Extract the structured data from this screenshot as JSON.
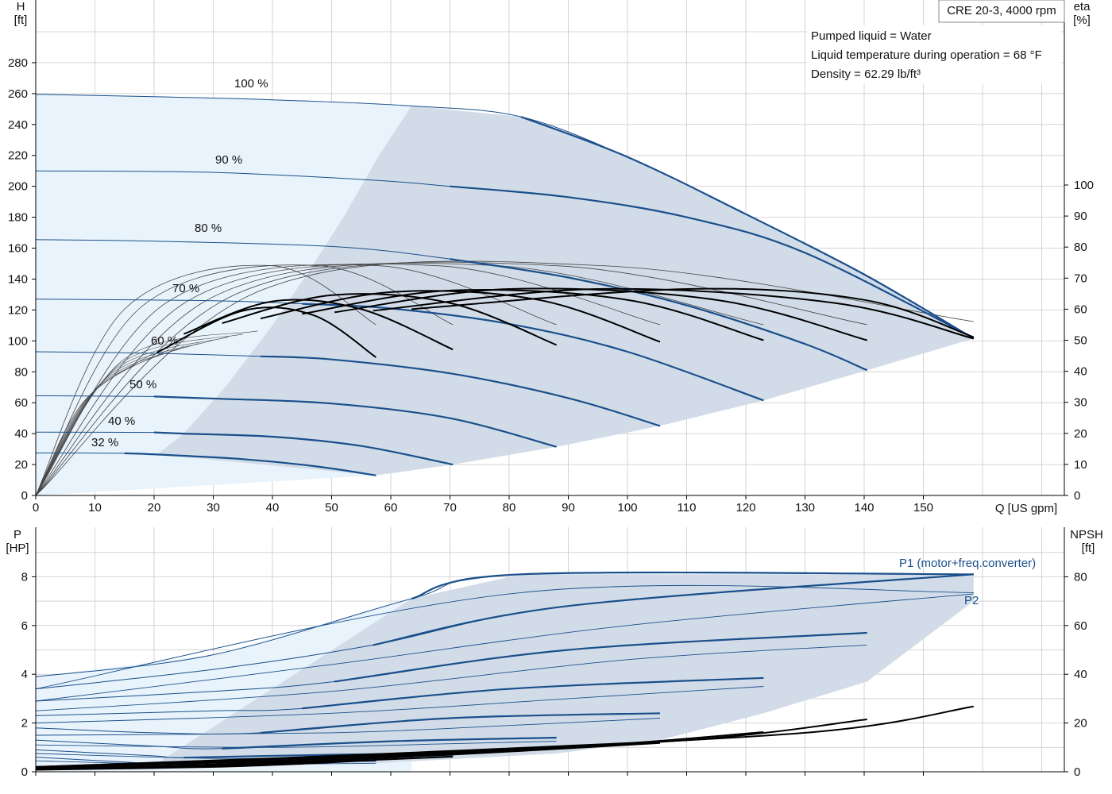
{
  "model_label": "CRE 20-3, 4000 rpm",
  "info_lines": [
    "Pumped liquid = Water",
    "Liquid temperature during operation = 68 °F",
    "Density = 62.29 lb/ft³"
  ],
  "colors": {
    "curve_blue": "#1a4f8b",
    "area_dark": "#d2dce8",
    "area_light": "#e9f3fb",
    "grid": "#d4d4d4",
    "eta_black": "#000000"
  },
  "chart_data": [
    {
      "type": "line",
      "name": "head",
      "xlabel": "Q [US gpm]",
      "ylabel": "H\n[ft]",
      "y2label": "eta\n[%]",
      "xlim": [
        0,
        170
      ],
      "ylim": [
        0,
        310
      ],
      "y2lim": [
        0,
        155
      ],
      "x_ticks": [
        0,
        10,
        20,
        30,
        40,
        50,
        60,
        70,
        80,
        90,
        100,
        110,
        120,
        130,
        140,
        150
      ],
      "y_ticks": [
        0,
        20,
        40,
        60,
        80,
        100,
        120,
        140,
        160,
        180,
        200,
        220,
        240,
        260,
        280
      ],
      "y2_ticks": [
        0,
        10,
        20,
        30,
        40,
        50,
        60,
        70,
        80,
        90,
        100
      ],
      "speed_curves": [
        {
          "label": "100 %",
          "x": [
            0,
            20,
            40,
            63.5,
            82,
            100,
            120,
            140,
            158.5
          ],
          "y": [
            259.5,
            258,
            256,
            252,
            245,
            219,
            182,
            143,
            101.5
          ]
        },
        {
          "label": "90 %",
          "x": [
            0,
            30,
            57,
            70,
            90,
            110,
            130,
            158.5
          ],
          "y": [
            210,
            209,
            204,
            200,
            193,
            180,
            157,
            102
          ]
        },
        {
          "label": "80 %",
          "x": [
            0,
            20,
            50.5,
            70,
            90,
            110,
            130,
            140.5
          ],
          "y": [
            165.5,
            164.5,
            161,
            153,
            141,
            123,
            98,
            81
          ]
        },
        {
          "label": "70 %",
          "x": [
            0,
            30,
            45,
            60,
            80,
            100,
            123
          ],
          "y": [
            127,
            126,
            124,
            121,
            111,
            93,
            61.5
          ]
        },
        {
          "label": "60 %",
          "x": [
            0,
            20,
            38,
            50,
            70,
            90,
            105.5
          ],
          "y": [
            93,
            92,
            90,
            88,
            79,
            63,
            45
          ]
        },
        {
          "label": "50 %",
          "x": [
            0,
            20,
            31.5,
            50,
            70,
            88
          ],
          "y": [
            64.5,
            64,
            62.5,
            59.5,
            50,
            31.5
          ]
        },
        {
          "label": "40 %",
          "x": [
            0,
            20,
            25,
            40,
            55,
            70.5
          ],
          "y": [
            41,
            40.8,
            40,
            38,
            32,
            20
          ]
        },
        {
          "label": "32 %",
          "x": [
            0,
            15,
            20.5,
            35,
            47,
            57.5
          ],
          "y": [
            27.5,
            27.3,
            26.5,
            23.5,
            19,
            13
          ]
        }
      ],
      "efficiency_curves_pct": [
        {
          "x": [
            20.5,
            35,
            47,
            57.5
          ],
          "y": [
            46,
            59.5,
            58,
            44.5
          ]
        },
        {
          "x": [
            25,
            40,
            55,
            70.5
          ],
          "y": [
            52,
            62.5,
            60,
            47
          ]
        },
        {
          "x": [
            31.5,
            50,
            70,
            88
          ],
          "y": [
            55.5,
            64.5,
            62,
            48.5
          ]
        },
        {
          "x": [
            38,
            60,
            85,
            105.5
          ],
          "y": [
            57,
            65.5,
            63,
            49.5
          ]
        },
        {
          "x": [
            45,
            70,
            100,
            123
          ],
          "y": [
            58.5,
            66,
            63,
            50
          ]
        },
        {
          "x": [
            50.5,
            80,
            115,
            140.5
          ],
          "y": [
            59,
            66.5,
            63,
            50
          ]
        },
        {
          "x": [
            57,
            95,
            135,
            158.5
          ],
          "y": [
            59.5,
            66.5,
            62,
            50.5
          ]
        },
        {
          "x": [
            63.5,
            110,
            140,
            158.5
          ],
          "y": [
            60,
            66.5,
            63,
            51
          ]
        }
      ],
      "full_efficiency_curves_pct": [
        {
          "x": [
            0,
            15,
            40,
            57.5
          ],
          "y": [
            0,
            60,
            74,
            55
          ]
        },
        {
          "x": [
            0,
            18,
            48,
            70.5
          ],
          "y": [
            0,
            61,
            74,
            55
          ]
        },
        {
          "x": [
            0,
            22,
            58,
            88
          ],
          "y": [
            0,
            62,
            74,
            55
          ]
        },
        {
          "x": [
            0,
            26,
            68,
            105.5
          ],
          "y": [
            0,
            63,
            74,
            55
          ]
        },
        {
          "x": [
            0,
            30,
            78,
            123
          ],
          "y": [
            0,
            64,
            74,
            55
          ]
        },
        {
          "x": [
            0,
            34,
            88,
            140.5
          ],
          "y": [
            0,
            65,
            74,
            55
          ]
        },
        {
          "x": [
            0,
            38,
            96,
            158.5
          ],
          "y": [
            0,
            66,
            74,
            56
          ]
        }
      ],
      "max_region_pct": [
        {
          "x": [
            0,
            20,
            30,
            40
          ],
          "y": [
            0,
            30,
            38,
            43
          ]
        }
      ],
      "speed_percentages": [
        "100 %",
        "90 %",
        "80 %",
        "70 %",
        "60 %",
        "50 %",
        "40 %",
        "32 %"
      ]
    },
    {
      "type": "line",
      "name": "power",
      "xlabel": "",
      "ylabel": "P\n[HP]",
      "y2label": "NPSH\n[ft]",
      "xlim": [
        0,
        170
      ],
      "ylim": [
        0,
        9.5
      ],
      "y2lim": [
        0,
        95
      ],
      "y_ticks": [
        0,
        2,
        4,
        6,
        8
      ],
      "y2_ticks": [
        0,
        20,
        40,
        60,
        80
      ],
      "series_labels": [
        "P1 (motor+freq.converter)",
        "P2"
      ],
      "p1_curves": [
        {
          "x": [
            0,
            30,
            63.5,
            82,
            158.5
          ],
          "y": [
            3.9,
            4.8,
            7.1,
            8.1,
            8.1
          ]
        },
        {
          "x": [
            0,
            30,
            57,
            90,
            158.5
          ],
          "y": [
            3.4,
            4.2,
            5.2,
            6.8,
            8.1
          ]
        },
        {
          "x": [
            0,
            30,
            50.5,
            90,
            140.5
          ],
          "y": [
            2.9,
            3.3,
            3.7,
            5.0,
            5.7
          ]
        },
        {
          "x": [
            0,
            30,
            45,
            80,
            123
          ],
          "y": [
            2.3,
            2.5,
            2.6,
            3.4,
            3.85
          ]
        },
        {
          "x": [
            0,
            20,
            38,
            70,
            105.5
          ],
          "y": [
            1.8,
            1.6,
            1.6,
            2.2,
            2.4
          ]
        },
        {
          "x": [
            0,
            20,
            31.5,
            60,
            88
          ],
          "y": [
            1.3,
            1.05,
            0.95,
            1.25,
            1.4
          ]
        },
        {
          "x": [
            0,
            20,
            25,
            50,
            70.5
          ],
          "y": [
            0.9,
            0.65,
            0.58,
            0.7,
            0.75
          ]
        },
        {
          "x": [
            0,
            15,
            20.5,
            40,
            57.5
          ],
          "y": [
            0.6,
            0.4,
            0.35,
            0.4,
            0.45
          ]
        }
      ],
      "p2_curves": [
        {
          "x": [
            0,
            82,
            158.5
          ],
          "y": [
            3.4,
            7.35,
            7.35
          ]
        },
        {
          "x": [
            0,
            50,
            100,
            158.5
          ],
          "y": [
            2.9,
            4.4,
            6.0,
            7.3
          ]
        },
        {
          "x": [
            0,
            50,
            100,
            140.5
          ],
          "y": [
            2.5,
            3.3,
            4.6,
            5.2
          ]
        },
        {
          "x": [
            0,
            50,
            90,
            123
          ],
          "y": [
            2.0,
            2.4,
            3.0,
            3.5
          ]
        },
        {
          "x": [
            0,
            50,
            80,
            105.5
          ],
          "y": [
            1.5,
            1.6,
            1.9,
            2.2
          ]
        },
        {
          "x": [
            0,
            40,
            70,
            88
          ],
          "y": [
            1.1,
            1.0,
            1.15,
            1.25
          ]
        },
        {
          "x": [
            0,
            30,
            55,
            70.5
          ],
          "y": [
            0.75,
            0.55,
            0.6,
            0.65
          ]
        },
        {
          "x": [
            0,
            25,
            45,
            57.5
          ],
          "y": [
            0.45,
            0.3,
            0.32,
            0.35
          ]
        }
      ],
      "npsh_curves_ft": [
        {
          "x": [
            0,
            30,
            47,
            57.5
          ],
          "y": [
            0.8,
            2.0,
            3.5,
            4.8
          ]
        },
        {
          "x": [
            0,
            30,
            50,
            70.5
          ],
          "y": [
            1.0,
            2.5,
            4.2,
            6.2
          ]
        },
        {
          "x": [
            0,
            30,
            60,
            88
          ],
          "y": [
            1.0,
            2.8,
            5.8,
            9.5
          ]
        },
        {
          "x": [
            0,
            30,
            70,
            105.5
          ],
          "y": [
            1.2,
            3.0,
            7.0,
            11.8
          ]
        },
        {
          "x": [
            0,
            40,
            90,
            123
          ],
          "y": [
            1.5,
            4.5,
            10.0,
            16.3
          ]
        },
        {
          "x": [
            0,
            50,
            110,
            140.5
          ],
          "y": [
            2.0,
            6.0,
            13.0,
            21.5
          ]
        },
        {
          "x": [
            0,
            60,
            130,
            158.5
          ],
          "y": [
            2.0,
            7.5,
            16.0,
            26.8
          ]
        }
      ]
    }
  ]
}
